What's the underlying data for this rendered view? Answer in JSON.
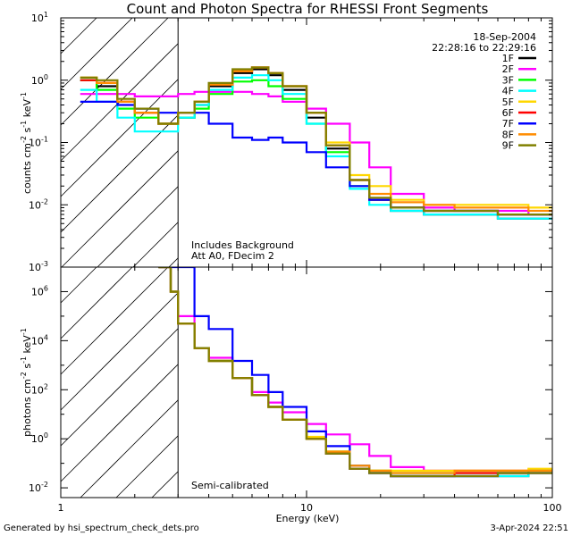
{
  "title": "Count and Photon Spectra for RHESSI Front Segments",
  "date": "18-Sep-2004",
  "time_range": "22:28:16 to 22:29:16",
  "x_label": "Energy (keV)",
  "footer_left": "Generated by hsi_spectrum_check_dets.pro",
  "footer_right": "3-Apr-2024 22:51",
  "legend": [
    {
      "name": "1F",
      "color": "#000000"
    },
    {
      "name": "2F",
      "color": "#ff00ff"
    },
    {
      "name": "3F",
      "color": "#00ff00"
    },
    {
      "name": "4F",
      "color": "#00ffff"
    },
    {
      "name": "5F",
      "color": "#ffd700"
    },
    {
      "name": "6F",
      "color": "#ff0000"
    },
    {
      "name": "7F",
      "color": "#0000ff"
    },
    {
      "name": "8F",
      "color": "#ff8c00"
    },
    {
      "name": "9F",
      "color": "#808000"
    }
  ],
  "chart_data": [
    {
      "type": "line",
      "title": "Count and Photon Spectra for RHESSI Front Segments",
      "xlabel": "Energy (keV)",
      "ylabel": "counts cm^-2 s^-1 keV^-1",
      "xscale": "log",
      "yscale": "log",
      "xlim": [
        1,
        100
      ],
      "ylim": [
        0.001,
        10
      ],
      "x_ticks": [
        "1",
        "10",
        "100"
      ],
      "y_ticks": [
        "10^-3",
        "10^-2",
        "10^-1",
        "10^0",
        "10^1"
      ],
      "annotations": [
        "Includes Background",
        "Att A0, FDecim 2"
      ],
      "shaded_region_keV": [
        1,
        3
      ],
      "x": [
        1.2,
        1.4,
        1.7,
        2.0,
        2.5,
        3.0,
        3.5,
        4.0,
        5.0,
        6.0,
        7.0,
        8.0,
        10.0,
        12.0,
        15.0,
        18.0,
        22.0,
        30.0,
        40.0,
        60.0,
        80.0,
        100.0
      ],
      "series": [
        {
          "name": "1F",
          "values": [
            1.0,
            0.8,
            0.45,
            0.3,
            0.2,
            0.25,
            0.4,
            0.8,
            1.3,
            1.5,
            1.2,
            0.7,
            0.25,
            0.08,
            0.025,
            0.012,
            0.008,
            0.007,
            0.007,
            0.006,
            0.006,
            0.006
          ]
        },
        {
          "name": "2F",
          "values": [
            0.6,
            0.6,
            0.6,
            0.55,
            0.55,
            0.6,
            0.65,
            0.65,
            0.65,
            0.6,
            0.55,
            0.45,
            0.35,
            0.2,
            0.1,
            0.04,
            0.015,
            0.009,
            0.008,
            0.008,
            0.007,
            0.007
          ]
        },
        {
          "name": "3F",
          "values": [
            1.0,
            0.7,
            0.35,
            0.25,
            0.2,
            0.25,
            0.35,
            0.6,
            0.95,
            1.0,
            0.8,
            0.5,
            0.2,
            0.07,
            0.02,
            0.012,
            0.009,
            0.008,
            0.008,
            0.007,
            0.007,
            0.007
          ]
        },
        {
          "name": "4F",
          "values": [
            0.7,
            0.45,
            0.25,
            0.15,
            0.15,
            0.25,
            0.4,
            0.7,
            1.1,
            1.2,
            1.0,
            0.6,
            0.2,
            0.06,
            0.018,
            0.01,
            0.008,
            0.007,
            0.007,
            0.006,
            0.006,
            0.006
          ]
        },
        {
          "name": "5F",
          "values": [
            1.1,
            0.9,
            0.45,
            0.3,
            0.2,
            0.3,
            0.45,
            0.85,
            1.4,
            1.6,
            1.3,
            0.8,
            0.3,
            0.1,
            0.03,
            0.02,
            0.012,
            0.01,
            0.01,
            0.01,
            0.009,
            0.009
          ]
        },
        {
          "name": "6F",
          "values": [
            1.0,
            0.9,
            0.45,
            0.3,
            0.2,
            0.3,
            0.45,
            0.85,
            1.4,
            1.6,
            1.3,
            0.8,
            0.3,
            0.09,
            0.025,
            0.012,
            0.009,
            0.008,
            0.008,
            0.007,
            0.007,
            0.007
          ]
        },
        {
          "name": "7F",
          "values": [
            0.45,
            0.45,
            0.4,
            0.35,
            0.3,
            0.3,
            0.3,
            0.2,
            0.12,
            0.11,
            0.12,
            0.1,
            0.07,
            0.04,
            0.02,
            0.012,
            0.009,
            0.008,
            0.008,
            0.007,
            0.007,
            0.007
          ]
        },
        {
          "name": "8F",
          "values": [
            1.1,
            0.9,
            0.45,
            0.3,
            0.2,
            0.3,
            0.45,
            0.85,
            1.4,
            1.6,
            1.3,
            0.8,
            0.3,
            0.09,
            0.025,
            0.015,
            0.011,
            0.01,
            0.009,
            0.009,
            0.008,
            0.008
          ]
        },
        {
          "name": "9F",
          "values": [
            1.1,
            1.0,
            0.5,
            0.35,
            0.2,
            0.3,
            0.45,
            0.9,
            1.5,
            1.6,
            1.3,
            0.8,
            0.3,
            0.09,
            0.025,
            0.013,
            0.009,
            0.008,
            0.008,
            0.007,
            0.007,
            0.007
          ]
        }
      ]
    },
    {
      "type": "line",
      "xlabel": "Energy (keV)",
      "ylabel": "photons cm^-2 s^-1 keV^-1",
      "xscale": "log",
      "yscale": "log",
      "xlim": [
        1,
        100
      ],
      "ylim": [
        0.004,
        10000000
      ],
      "x_ticks": [
        "1",
        "10",
        "100"
      ],
      "y_ticks": [
        "10^-2",
        "10^0",
        "10^2",
        "10^4",
        "10^6"
      ],
      "annotations": [
        "Semi-calibrated"
      ],
      "shaded_region_keV": [
        1,
        3
      ],
      "x": [
        2.5,
        2.8,
        3.0,
        3.5,
        4.0,
        5.0,
        6.0,
        7.0,
        8.0,
        10.0,
        12.0,
        15.0,
        18.0,
        22.0,
        30.0,
        40.0,
        60.0,
        80.0,
        100.0
      ],
      "series": [
        {
          "name": "1F",
          "values": [
            10000000,
            1000000,
            50000,
            5000,
            1500,
            300,
            60,
            20,
            6,
            1,
            0.25,
            0.06,
            0.04,
            0.03,
            0.03,
            0.03,
            0.03,
            0.04,
            0.04
          ]
        },
        {
          "name": "2F",
          "values": [
            10000000,
            1000000,
            100000,
            5000,
            2000,
            300,
            80,
            30,
            12,
            4,
            1.5,
            0.6,
            0.2,
            0.07,
            0.05,
            0.05,
            0.05,
            0.05,
            0.05
          ]
        },
        {
          "name": "3F",
          "values": [
            10000000,
            1000000,
            50000,
            5000,
            1500,
            300,
            60,
            20,
            6,
            1,
            0.3,
            0.08,
            0.05,
            0.04,
            0.04,
            0.04,
            0.04,
            0.05,
            0.05
          ]
        },
        {
          "name": "4F",
          "values": [
            10000000,
            1000000,
            50000,
            5000,
            1500,
            300,
            60,
            20,
            6,
            1,
            0.25,
            0.06,
            0.04,
            0.03,
            0.03,
            0.03,
            0.03,
            0.04,
            0.04
          ]
        },
        {
          "name": "5F",
          "values": [
            10000000,
            1000000,
            50000,
            5000,
            1500,
            300,
            60,
            20,
            6,
            1.2,
            0.3,
            0.08,
            0.05,
            0.05,
            0.05,
            0.05,
            0.05,
            0.06,
            0.06
          ]
        },
        {
          "name": "6F",
          "values": [
            10000000,
            1000000,
            50000,
            5000,
            1500,
            300,
            60,
            20,
            6,
            1,
            0.25,
            0.06,
            0.04,
            0.03,
            0.03,
            0.04,
            0.04,
            0.04,
            0.04
          ]
        },
        {
          "name": "7F",
          "values": [
            10000000,
            10000000,
            10000000,
            100000,
            30000,
            1500,
            400,
            80,
            20,
            2,
            0.5,
            0.08,
            0.04,
            0.03,
            0.03,
            0.03,
            0.04,
            0.04,
            0.04
          ]
        },
        {
          "name": "8F",
          "values": [
            10000000,
            1000000,
            50000,
            5000,
            1500,
            300,
            60,
            20,
            6,
            1,
            0.3,
            0.08,
            0.05,
            0.04,
            0.04,
            0.05,
            0.05,
            0.05,
            0.05
          ]
        },
        {
          "name": "9F",
          "values": [
            10000000,
            1000000,
            50000,
            5000,
            1500,
            300,
            60,
            20,
            6,
            1,
            0.25,
            0.06,
            0.04,
            0.03,
            0.03,
            0.03,
            0.04,
            0.04,
            0.04
          ]
        }
      ]
    }
  ]
}
